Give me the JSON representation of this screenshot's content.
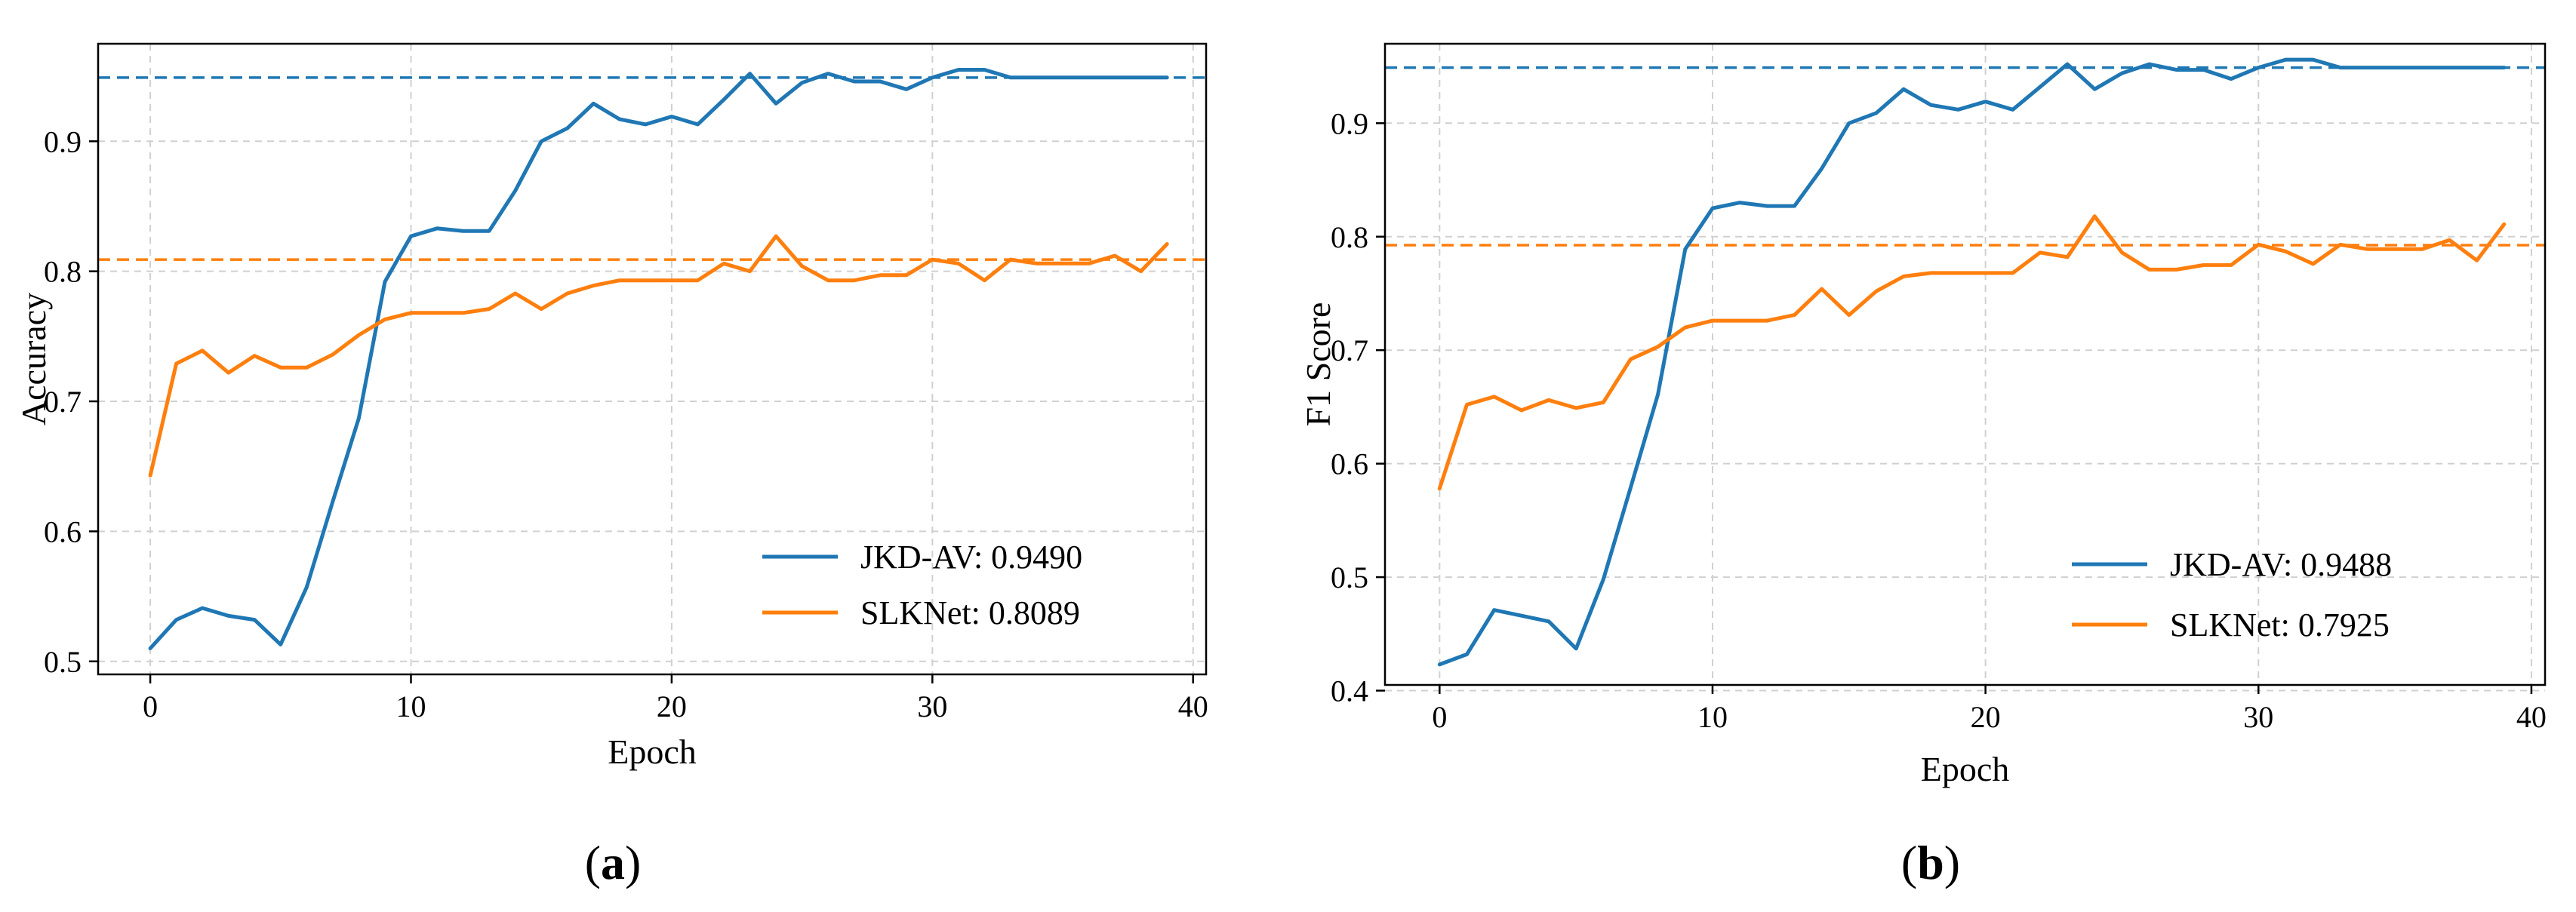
{
  "chart_data": [
    {
      "type": "line",
      "panel_label": "a",
      "xlabel": "Epoch",
      "ylabel": "Accuracy",
      "xlim": [
        -2,
        40.5
      ],
      "ylim": [
        0.49,
        0.975
      ],
      "xticks": [
        0,
        10,
        20,
        30,
        40
      ],
      "yticks": [
        0.5,
        0.6,
        0.7,
        0.8,
        0.9
      ],
      "grid": true,
      "legend_position": "lower-right",
      "x": [
        0,
        1,
        2,
        3,
        4,
        5,
        6,
        7,
        8,
        9,
        10,
        11,
        12,
        13,
        14,
        15,
        16,
        17,
        18,
        19,
        20,
        21,
        22,
        23,
        24,
        25,
        26,
        27,
        28,
        29,
        30,
        31,
        32,
        33,
        34,
        35,
        36,
        37,
        38,
        39
      ],
      "series": [
        {
          "name": "JKD-AV: 0.9490",
          "color": "#1f77b4",
          "values": [
            0.51,
            0.532,
            0.541,
            0.535,
            0.532,
            0.513,
            0.557,
            0.623,
            0.687,
            0.792,
            0.827,
            0.833,
            0.831,
            0.831,
            0.862,
            0.9,
            0.91,
            0.929,
            0.917,
            0.913,
            0.919,
            0.913,
            0.932,
            0.952,
            0.929,
            0.945,
            0.952,
            0.946,
            0.946,
            0.94,
            0.949,
            0.955,
            0.955,
            0.949,
            0.949,
            0.949,
            0.949,
            0.949,
            0.949,
            0.949
          ],
          "reference_line": 0.949
        },
        {
          "name": "SLKNet: 0.8089",
          "color": "#ff7f0e",
          "values": [
            0.643,
            0.729,
            0.739,
            0.722,
            0.735,
            0.726,
            0.726,
            0.736,
            0.751,
            0.763,
            0.768,
            0.768,
            0.768,
            0.771,
            0.783,
            0.771,
            0.783,
            0.789,
            0.793,
            0.793,
            0.793,
            0.793,
            0.806,
            0.8,
            0.827,
            0.804,
            0.793,
            0.793,
            0.797,
            0.797,
            0.809,
            0.806,
            0.793,
            0.809,
            0.806,
            0.806,
            0.806,
            0.812,
            0.8,
            0.821
          ],
          "reference_line": 0.809
        }
      ]
    },
    {
      "type": "line",
      "panel_label": "b",
      "xlabel": "Epoch",
      "ylabel": "F1 Score",
      "xlim": [
        -2,
        40.5
      ],
      "ylim": [
        0.405,
        0.97
      ],
      "xticks": [
        0,
        10,
        20,
        30,
        40
      ],
      "yticks": [
        0.4,
        0.5,
        0.6,
        0.7,
        0.8,
        0.9
      ],
      "grid": true,
      "legend_position": "lower-right",
      "x": [
        0,
        1,
        2,
        3,
        4,
        5,
        6,
        7,
        8,
        9,
        10,
        11,
        12,
        13,
        14,
        15,
        16,
        17,
        18,
        19,
        20,
        21,
        22,
        23,
        24,
        25,
        26,
        27,
        28,
        29,
        30,
        31,
        32,
        33,
        34,
        35,
        36,
        37,
        38,
        39
      ],
      "series": [
        {
          "name": "JKD-AV: 0.9488",
          "color": "#1f77b4",
          "values": [
            0.423,
            0.432,
            0.471,
            0.466,
            0.461,
            0.437,
            0.498,
            0.579,
            0.661,
            0.789,
            0.825,
            0.83,
            0.827,
            0.827,
            0.86,
            0.9,
            0.909,
            0.93,
            0.916,
            0.912,
            0.919,
            0.912,
            0.932,
            0.952,
            0.93,
            0.944,
            0.952,
            0.947,
            0.947,
            0.939,
            0.949,
            0.956,
            0.956,
            0.949,
            0.949,
            0.949,
            0.949,
            0.949,
            0.949,
            0.949
          ],
          "reference_line": 0.949
        },
        {
          "name": "SLKNet: 0.7925",
          "color": "#ff7f0e",
          "values": [
            0.578,
            0.652,
            0.659,
            0.647,
            0.656,
            0.649,
            0.654,
            0.692,
            0.703,
            0.72,
            0.726,
            0.726,
            0.726,
            0.731,
            0.754,
            0.731,
            0.752,
            0.765,
            0.768,
            0.768,
            0.768,
            0.768,
            0.786,
            0.782,
            0.818,
            0.786,
            0.771,
            0.771,
            0.775,
            0.775,
            0.793,
            0.787,
            0.776,
            0.793,
            0.789,
            0.789,
            0.789,
            0.797,
            0.779,
            0.811
          ],
          "reference_line": 0.7925
        }
      ]
    }
  ]
}
